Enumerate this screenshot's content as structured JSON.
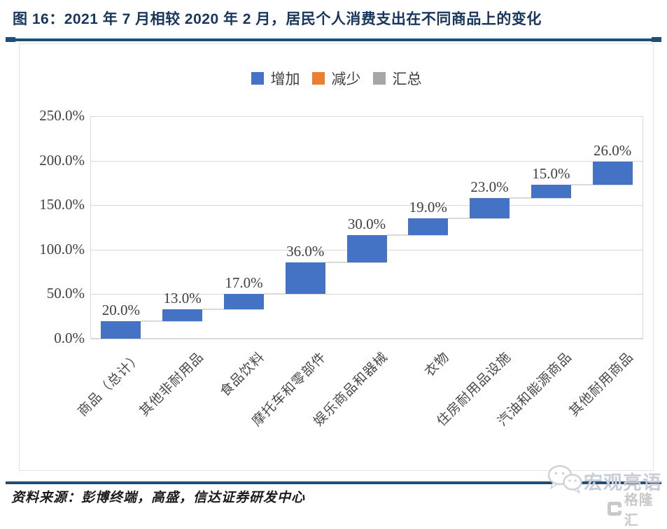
{
  "figure": {
    "title": "图 16：2021 年 7 月相较 2020 年 2 月，居民个人消费支出在不同商品上的变化",
    "source": "资料来源：彭博终端，高盛，信达证券研发中心"
  },
  "watermark": {
    "brand": "宏观亮语",
    "logo_text": "格隆汇",
    "icons": [
      "wechat-icon",
      "gelonghui-icon"
    ]
  },
  "colors": {
    "title_navy": "#17365D",
    "rule_navy": "#1F4E79",
    "watermark_gray": "#C9CED6"
  },
  "chart_data": {
    "type": "bar",
    "subtype": "waterfall",
    "categories": [
      "商品（总计）",
      "其他非耐用品",
      "食品饮料",
      "摩托车和零部件",
      "娱乐商品和器械",
      "衣物",
      "住房耐用品设施",
      "汽油和能源商品",
      "其他耐用商品"
    ],
    "values": [
      20.0,
      13.0,
      17.0,
      36.0,
      30.0,
      19.0,
      23.0,
      15.0,
      26.0
    ],
    "bar_labels": [
      "20.0%",
      "13.0%",
      "17.0%",
      "36.0%",
      "30.0%",
      "19.0%",
      "23.0%",
      "15.0%",
      "26.0%"
    ],
    "cumulative_start": [
      0,
      20,
      33,
      50,
      86,
      116,
      135,
      158,
      173
    ],
    "cumulative_end": [
      20,
      33,
      50,
      86,
      116,
      135,
      158,
      173,
      199
    ],
    "unit": "%",
    "legend": [
      {
        "label": "增加",
        "color": "#4472C4"
      },
      {
        "label": "减少",
        "color": "#ED7D31"
      },
      {
        "label": "汇总",
        "color": "#A6A6A6"
      }
    ],
    "legend_position": "top-center",
    "y_ticks": [
      "0.0%",
      "50.0%",
      "100.0%",
      "150.0%",
      "200.0%",
      "250.0%"
    ],
    "y_tick_values": [
      0,
      50,
      100,
      150,
      200,
      250
    ],
    "ylim": [
      0,
      250
    ],
    "grid": true,
    "bar_color": "#4472C4",
    "connector_color": "#D9D9D9",
    "grid_color": "#D9D9D9",
    "label_color": "#3F3F3F"
  }
}
